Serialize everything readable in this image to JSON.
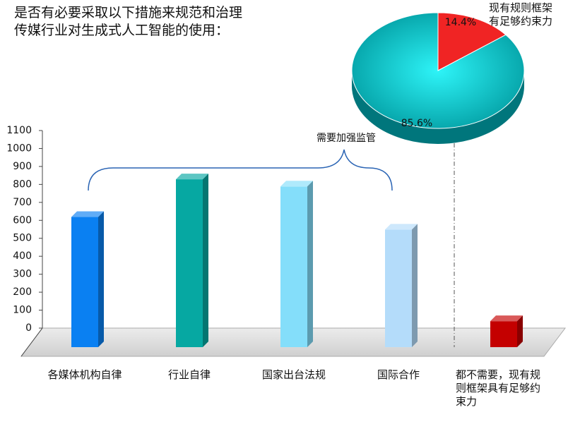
{
  "chart_data": [
    {
      "type": "bar",
      "title": "是否有必要采取以下措施来规范和治理传媒行业对生成式人工智能的使用：",
      "annotation": "需要加强监管",
      "categories": [
        "各媒体机构自律",
        "行业自律",
        "国家出台法规",
        "国际合作",
        "都不需要，现有规则框架具有足够约束力"
      ],
      "values": [
        650,
        860,
        820,
        580,
        70
      ],
      "colors": [
        "#0a80f2",
        "#06a8a2",
        "#84defa",
        "#b4dcfa",
        "#c40000"
      ],
      "ylim": [
        0,
        1100
      ],
      "yticks": [
        0,
        100,
        200,
        300,
        400,
        500,
        600,
        700,
        800,
        900,
        1000,
        1100
      ]
    },
    {
      "type": "pie",
      "categories": [
        "现有规则框架有足够约束力",
        null
      ],
      "values": [
        14.4,
        85.6
      ],
      "value_labels": [
        "14.4%",
        "85.6%"
      ],
      "colors": [
        "#f02424",
        "#00c4cc"
      ]
    }
  ]
}
